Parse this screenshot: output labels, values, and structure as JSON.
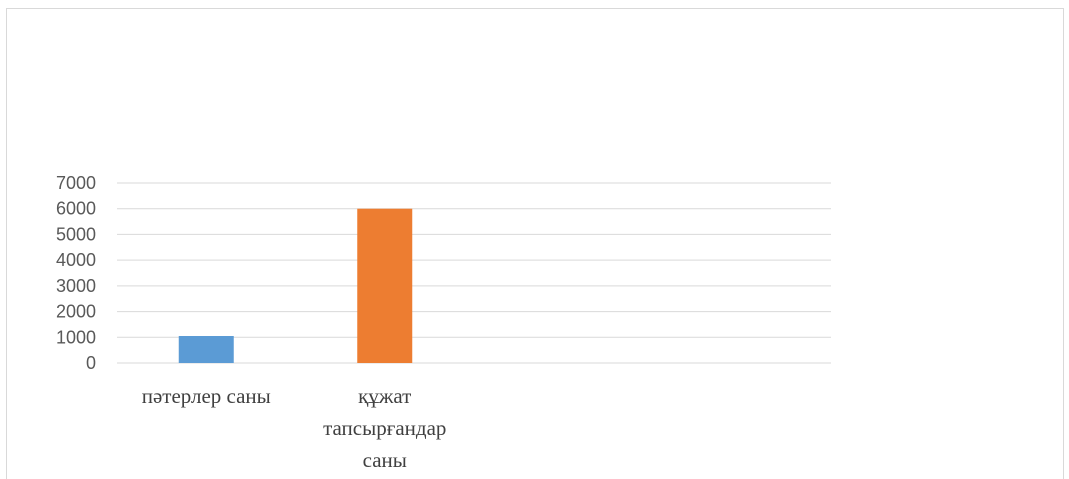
{
  "chart_data": {
    "type": "bar",
    "title": "",
    "xlabel": "",
    "ylabel": "",
    "ylim": [
      0,
      7000
    ],
    "yticks": [
      "0",
      "1000",
      "2000",
      "3000",
      "4000",
      "5000",
      "6000",
      "7000"
    ],
    "categories": [
      [
        "пәтерлер  саны"
      ],
      [
        "құжат",
        "тапсырғандар",
        "саны"
      ]
    ],
    "values": [
      1050,
      6000
    ],
    "colors": [
      "#5b9bd5",
      "#ed7d31"
    ],
    "grid": true,
    "legend": "none"
  }
}
